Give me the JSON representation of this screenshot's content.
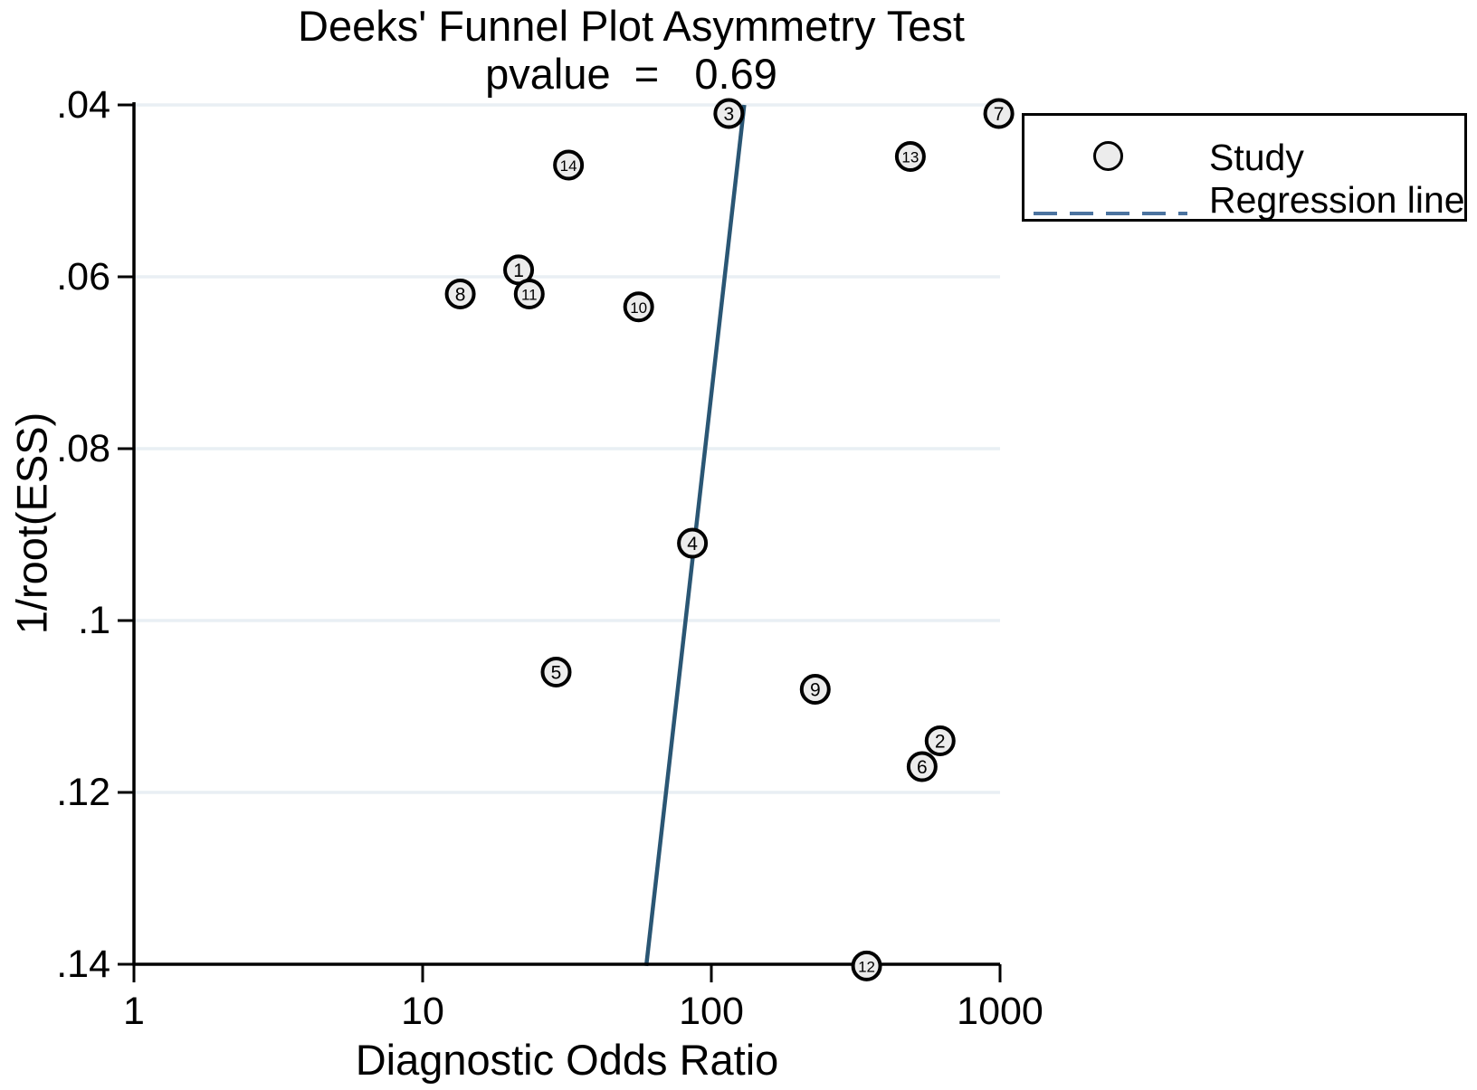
{
  "title": {
    "line1": "Deeks' Funnel Plot Asymmetry Test",
    "line2": "pvalue  =   0.69"
  },
  "axes": {
    "x_title": "Diagnostic Odds Ratio",
    "y_title": "1/root(ESS)",
    "x_tick_labels": [
      "1",
      "10",
      "100",
      "1000"
    ],
    "y_tick_labels": [
      ".04",
      ".06",
      ".08",
      ".1",
      ".12",
      ".14"
    ]
  },
  "legend": {
    "study_label": "Study",
    "regression_label": "Regression line"
  },
  "colors": {
    "regression_line": "#2a5674",
    "legend_dash": "#4b739f",
    "gridline": "#e9eff4",
    "marker_fill": "#ececec",
    "marker_stroke": "#000000",
    "axis": "#000000"
  },
  "chart_data": {
    "type": "scatter",
    "title": "Deeks' Funnel Plot Asymmetry Test",
    "subtitle": "pvalue = 0.69",
    "pvalue": 0.69,
    "xlabel": "Diagnostic Odds Ratio",
    "ylabel": "1/root(ESS)",
    "x_scale": "log10",
    "xlim": [
      1,
      1000
    ],
    "ylim": [
      0.04,
      0.14
    ],
    "y_axis_inverted": true,
    "grid": "horizontal-only",
    "x_ticks": [
      1,
      10,
      100,
      1000
    ],
    "y_ticks": [
      0.04,
      0.06,
      0.08,
      0.1,
      0.12,
      0.14
    ],
    "legend_entries": [
      "Study",
      "Regression line"
    ],
    "legend_position": "top-right",
    "series": [
      {
        "name": "Study",
        "marker": "numbered-circle",
        "points": [
          {
            "study": 1,
            "dor": 21.5,
            "inv_root_ess": 0.0592
          },
          {
            "study": 2,
            "dor": 620,
            "inv_root_ess": 0.114
          },
          {
            "study": 3,
            "dor": 115,
            "inv_root_ess": 0.041
          },
          {
            "study": 4,
            "dor": 86,
            "inv_root_ess": 0.091
          },
          {
            "study": 5,
            "dor": 29,
            "inv_root_ess": 0.106
          },
          {
            "study": 6,
            "dor": 537,
            "inv_root_ess": 0.117
          },
          {
            "study": 7,
            "dor": 990,
            "inv_root_ess": 0.041
          },
          {
            "study": 8,
            "dor": 13.5,
            "inv_root_ess": 0.062
          },
          {
            "study": 9,
            "dor": 229,
            "inv_root_ess": 0.108
          },
          {
            "study": 10,
            "dor": 56,
            "inv_root_ess": 0.0635
          },
          {
            "study": 11,
            "dor": 23.4,
            "inv_root_ess": 0.062
          },
          {
            "study": 12,
            "dor": 345,
            "inv_root_ess": 0.1402
          },
          {
            "study": 13,
            "dor": 489,
            "inv_root_ess": 0.046
          },
          {
            "study": 14,
            "dor": 32,
            "inv_root_ess": 0.047
          }
        ]
      }
    ],
    "regression_line": {
      "style": "solid",
      "x1_dor": 130,
      "y1": 0.04,
      "x2_dor": 59.5,
      "y2": 0.1402
    }
  }
}
